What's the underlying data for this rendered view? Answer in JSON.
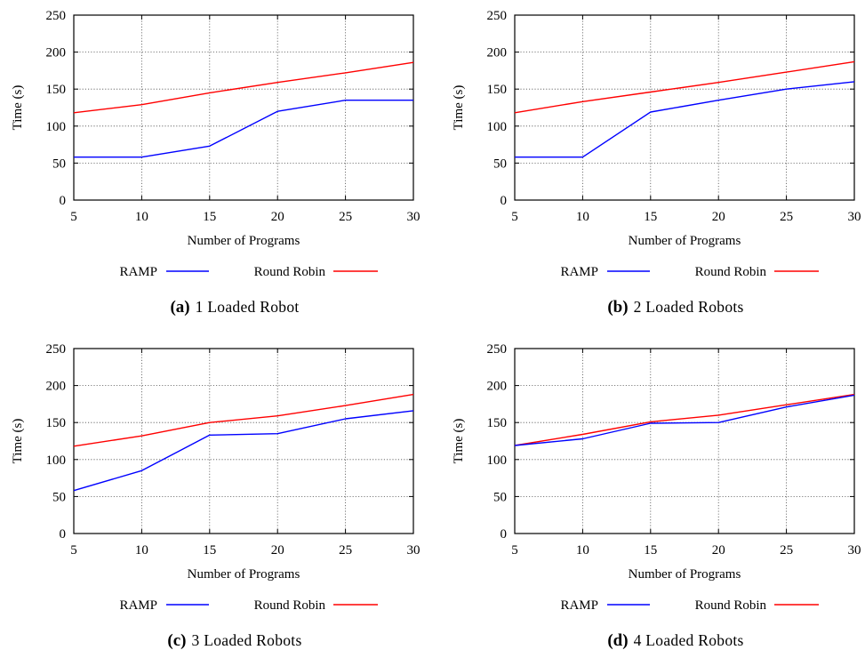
{
  "chart_data": [
    {
      "type": "line",
      "caption_letter": "(a)",
      "caption_text": "1 Loaded Robot",
      "xlabel": "Number of Programs",
      "ylabel": "Time (s)",
      "x": [
        5,
        10,
        15,
        20,
        25,
        30
      ],
      "xticks": [
        "5",
        "10",
        "15",
        "20",
        "25",
        "30"
      ],
      "yticks": [
        "0",
        "50",
        "100",
        "150",
        "200",
        "250"
      ],
      "xlim": [
        5,
        30
      ],
      "ylim": [
        0,
        250
      ],
      "grid": true,
      "legend": "below",
      "series": [
        {
          "name": "RAMP",
          "color": "#0000ff",
          "values": [
            58,
            58,
            73,
            120,
            135,
            135
          ]
        },
        {
          "name": "Round Robin",
          "color": "#ff0000",
          "values": [
            118,
            129,
            145,
            159,
            172,
            186
          ]
        }
      ]
    },
    {
      "type": "line",
      "caption_letter": "(b)",
      "caption_text": "2 Loaded Robots",
      "xlabel": "Number of Programs",
      "ylabel": "Time (s)",
      "x": [
        5,
        10,
        15,
        20,
        25,
        30
      ],
      "xticks": [
        "5",
        "10",
        "15",
        "20",
        "25",
        "30"
      ],
      "yticks": [
        "0",
        "50",
        "100",
        "150",
        "200",
        "250"
      ],
      "xlim": [
        5,
        30
      ],
      "ylim": [
        0,
        250
      ],
      "grid": true,
      "legend": "below",
      "series": [
        {
          "name": "RAMP",
          "color": "#0000ff",
          "values": [
            58,
            58,
            119,
            135,
            150,
            160
          ]
        },
        {
          "name": "Round Robin",
          "color": "#ff0000",
          "values": [
            118,
            133,
            146,
            159,
            173,
            187
          ]
        }
      ]
    },
    {
      "type": "line",
      "caption_letter": "(c)",
      "caption_text": "3 Loaded Robots",
      "xlabel": "Number of Programs",
      "ylabel": "Time (s)",
      "x": [
        5,
        10,
        15,
        20,
        25,
        30
      ],
      "xticks": [
        "5",
        "10",
        "15",
        "20",
        "25",
        "30"
      ],
      "yticks": [
        "0",
        "50",
        "100",
        "150",
        "200",
        "250"
      ],
      "xlim": [
        5,
        30
      ],
      "ylim": [
        0,
        250
      ],
      "grid": true,
      "legend": "below",
      "series": [
        {
          "name": "RAMP",
          "color": "#0000ff",
          "values": [
            58,
            85,
            133,
            135,
            155,
            166
          ]
        },
        {
          "name": "Round Robin",
          "color": "#ff0000",
          "values": [
            118,
            132,
            150,
            159,
            173,
            188
          ]
        }
      ]
    },
    {
      "type": "line",
      "caption_letter": "(d)",
      "caption_text": "4 Loaded Robots",
      "xlabel": "Number of Programs",
      "ylabel": "Time (s)",
      "x": [
        5,
        10,
        15,
        20,
        25,
        30
      ],
      "xticks": [
        "5",
        "10",
        "15",
        "20",
        "25",
        "30"
      ],
      "yticks": [
        "0",
        "50",
        "100",
        "150",
        "200",
        "250"
      ],
      "xlim": [
        5,
        30
      ],
      "ylim": [
        0,
        250
      ],
      "grid": true,
      "legend": "below",
      "series": [
        {
          "name": "RAMP",
          "color": "#0000ff",
          "values": [
            119,
            128,
            149,
            150,
            171,
            187
          ]
        },
        {
          "name": "Round Robin",
          "color": "#ff0000",
          "values": [
            119,
            134,
            151,
            160,
            174,
            188
          ]
        }
      ]
    }
  ]
}
